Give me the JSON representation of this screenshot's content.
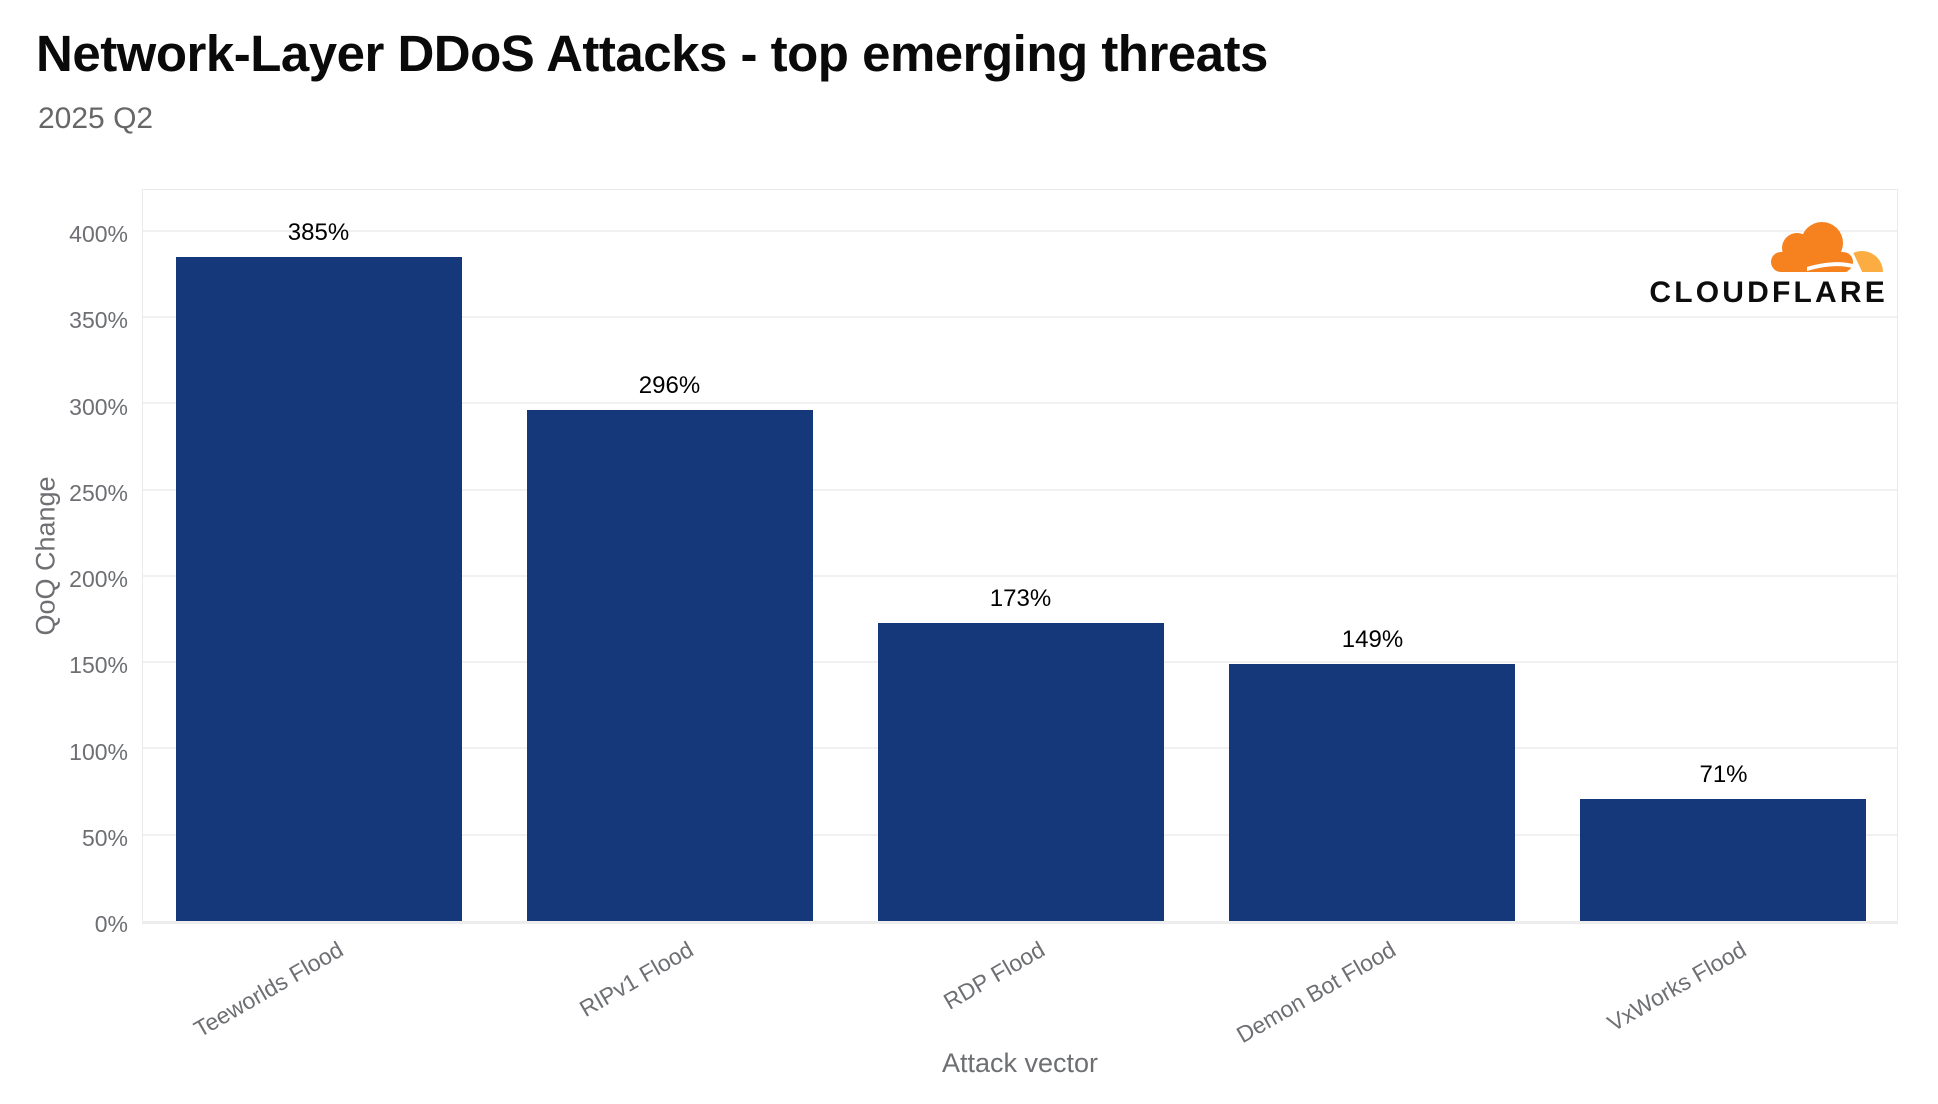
{
  "header": {
    "title": "Network-Layer DDoS Attacks - top emerging threats",
    "subtitle": "2025 Q2"
  },
  "branding": {
    "logo_text": "CLOUDFLARE",
    "cloud_main_color": "#F6821F",
    "cloud_light_color": "#FBAD41"
  },
  "chart_data": {
    "type": "bar",
    "title": "Network-Layer DDoS Attacks - top emerging threats",
    "subtitle": "2025 Q2",
    "categories": [
      "Teeworlds Flood",
      "RIPv1 Flood",
      "RDP Flood",
      "Demon Bot Flood",
      "VxWorks Flood"
    ],
    "values": [
      385,
      296,
      173,
      149,
      71
    ],
    "value_labels": [
      "385%",
      "296%",
      "173%",
      "149%",
      "71%"
    ],
    "xlabel": "Attack vector",
    "ylabel": "QoQ Change",
    "ylim": [
      0,
      400
    ],
    "ytick_step": 50,
    "ytick_labels": [
      "0%",
      "50%",
      "100%",
      "150%",
      "200%",
      "250%",
      "300%",
      "350%",
      "400%"
    ],
    "grid": true,
    "legend": "none",
    "bar_color": "#15387a",
    "value_label_color": "#000000",
    "axis_text_color": "#6d6f73",
    "grid_color": "#f1f1f1"
  }
}
